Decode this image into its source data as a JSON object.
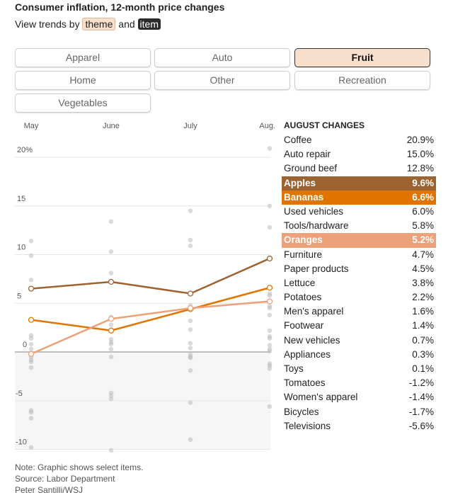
{
  "title": "Consumer inflation, 12-month price changes",
  "subtitle": {
    "prefix": "View trends by",
    "theme": "theme",
    "and": "and",
    "item": "item"
  },
  "themes": [
    {
      "label": "Apparel",
      "active": false
    },
    {
      "label": "Auto",
      "active": false
    },
    {
      "label": "Fruit",
      "active": true
    },
    {
      "label": "Home",
      "active": false
    },
    {
      "label": "Other",
      "active": false
    },
    {
      "label": "Recreation",
      "active": false
    },
    {
      "label": "Vegetables",
      "active": false
    }
  ],
  "table": {
    "header": "AUGUST CHANGES",
    "rows": [
      {
        "item": "Coffee",
        "value": "20.9%"
      },
      {
        "item": "Auto repair",
        "value": "15.0%"
      },
      {
        "item": "Ground beef",
        "value": "12.8%"
      },
      {
        "item": "Apples",
        "value": "9.6%",
        "color": "#9c6230"
      },
      {
        "item": "Bananas",
        "value": "6.6%",
        "color": "#e07400"
      },
      {
        "item": "Used vehicles",
        "value": "6.0%"
      },
      {
        "item": "Tools/hardware",
        "value": "5.8%"
      },
      {
        "item": "Oranges",
        "value": "5.2%",
        "color": "#eda17a"
      },
      {
        "item": "Furniture",
        "value": "4.7%"
      },
      {
        "item": "Paper products",
        "value": "4.5%"
      },
      {
        "item": "Lettuce",
        "value": "3.8%"
      },
      {
        "item": "Potatoes",
        "value": "2.2%"
      },
      {
        "item": "Men's apparel",
        "value": "1.6%"
      },
      {
        "item": "Footwear",
        "value": "1.4%"
      },
      {
        "item": "New vehicles",
        "value": "0.7%"
      },
      {
        "item": "Appliances",
        "value": "0.3%"
      },
      {
        "item": "Toys",
        "value": "0.1%"
      },
      {
        "item": "Tomatoes",
        "value": "-1.2%"
      },
      {
        "item": "Women's apparel",
        "value": "-1.4%"
      },
      {
        "item": "Bicycles",
        "value": "-1.7%"
      },
      {
        "item": "Televisions",
        "value": "-5.6%"
      }
    ]
  },
  "notes": [
    "Note: Graphic shows select items.",
    "Source: Labor Department",
    "Peter Santilli/WSJ"
  ],
  "chart_data": {
    "type": "line",
    "x": [
      "May",
      "June",
      "July",
      "Aug."
    ],
    "ylim": [
      -10,
      20
    ],
    "yticks": [
      "20%",
      "15",
      "10",
      "5",
      "0",
      "-5",
      "-10"
    ],
    "grid": true,
    "series": [
      {
        "name": "Apples",
        "color": "#9c6230",
        "values": [
          6.5,
          7.2,
          6.0,
          9.6
        ]
      },
      {
        "name": "Bananas",
        "color": "#e07400",
        "values": [
          3.3,
          2.2,
          4.4,
          6.6
        ]
      },
      {
        "name": "Oranges",
        "color": "#eda17a",
        "values": [
          -0.2,
          3.4,
          4.5,
          5.2
        ]
      }
    ],
    "background_points": [
      [
        11.4,
        9.9,
        7.4,
        1.7,
        1.4,
        0.8,
        0.3,
        -0.5,
        -0.8,
        -1.0,
        -1.6,
        -6.0,
        -6.2,
        -6.8,
        -9.8
      ],
      [
        13.4,
        10.3,
        8.1,
        3.6,
        2.8,
        1.3,
        1.0,
        0.8,
        0.3,
        -0.5,
        -4.2,
        -4.5,
        -4.8,
        -10.1
      ],
      [
        14.5,
        11.5,
        10.9,
        4.8,
        3.2,
        2.3,
        0.9,
        0.4,
        -0.3,
        -0.5,
        -0.6,
        -1.9,
        -5.2,
        -9.0
      ],
      [
        20.9,
        15.0,
        12.8,
        6.0,
        5.8,
        4.7,
        4.5,
        3.8,
        2.2,
        1.6,
        1.4,
        0.7,
        0.3,
        0.1,
        -1.2,
        -1.4,
        -1.7,
        -5.6
      ]
    ]
  }
}
